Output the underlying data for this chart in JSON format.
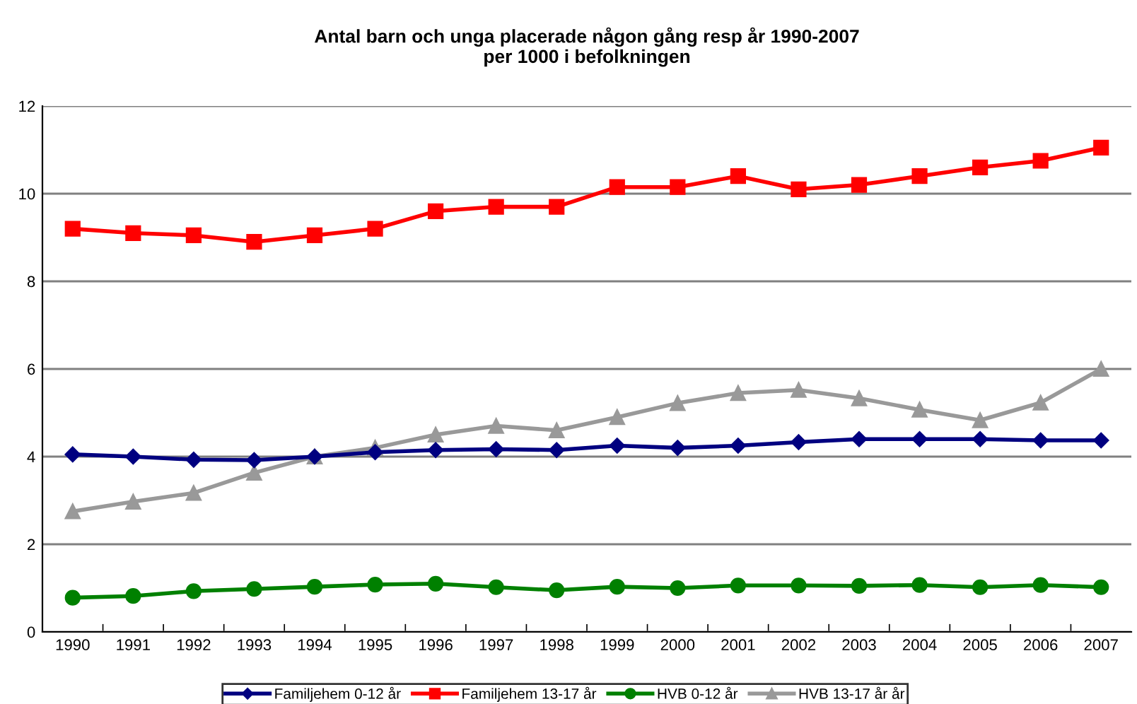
{
  "chart_data": {
    "type": "line",
    "title": "Antal barn och unga placerade någon gång resp år 1990-2007\nper 1000 i befolkningen",
    "categories": [
      "1990",
      "1991",
      "1992",
      "1993",
      "1994",
      "1995",
      "1996",
      "1997",
      "1998",
      "1999",
      "2000",
      "2001",
      "2002",
      "2003",
      "2004",
      "2005",
      "2006",
      "2007"
    ],
    "series": [
      {
        "name": "Familjehem 0-12 år",
        "color": "#000080",
        "marker": "diamond",
        "values": [
          4.05,
          4.0,
          3.93,
          3.92,
          4.0,
          4.1,
          4.15,
          4.17,
          4.15,
          4.25,
          4.2,
          4.25,
          4.33,
          4.4,
          4.4,
          4.4,
          4.37,
          4.37
        ]
      },
      {
        "name": "Familjehem 13-17 år",
        "color": "#ff0000",
        "marker": "square",
        "values": [
          9.2,
          9.1,
          9.05,
          8.9,
          9.05,
          9.2,
          9.6,
          9.7,
          9.7,
          10.15,
          10.15,
          10.4,
          10.1,
          10.2,
          10.4,
          10.6,
          10.75,
          11.05
        ]
      },
      {
        "name": "HVB 0-12 år",
        "color": "#008000",
        "marker": "circle",
        "values": [
          0.78,
          0.82,
          0.93,
          0.98,
          1.03,
          1.08,
          1.1,
          1.02,
          0.95,
          1.03,
          1.0,
          1.06,
          1.06,
          1.05,
          1.07,
          1.02,
          1.07,
          1.02
        ]
      },
      {
        "name": "HVB 13-17 år år",
        "color": "#999999",
        "marker": "triangle",
        "values": [
          2.75,
          2.97,
          3.17,
          3.63,
          4.0,
          4.2,
          4.5,
          4.7,
          4.6,
          4.9,
          5.22,
          5.45,
          5.52,
          5.33,
          5.07,
          4.83,
          5.23,
          6.0
        ]
      }
    ],
    "ylim": [
      0,
      12
    ],
    "yticks": [
      0,
      2,
      4,
      6,
      8,
      10,
      12
    ],
    "grid": "y",
    "legend": "bottom",
    "line_style": "solid"
  }
}
